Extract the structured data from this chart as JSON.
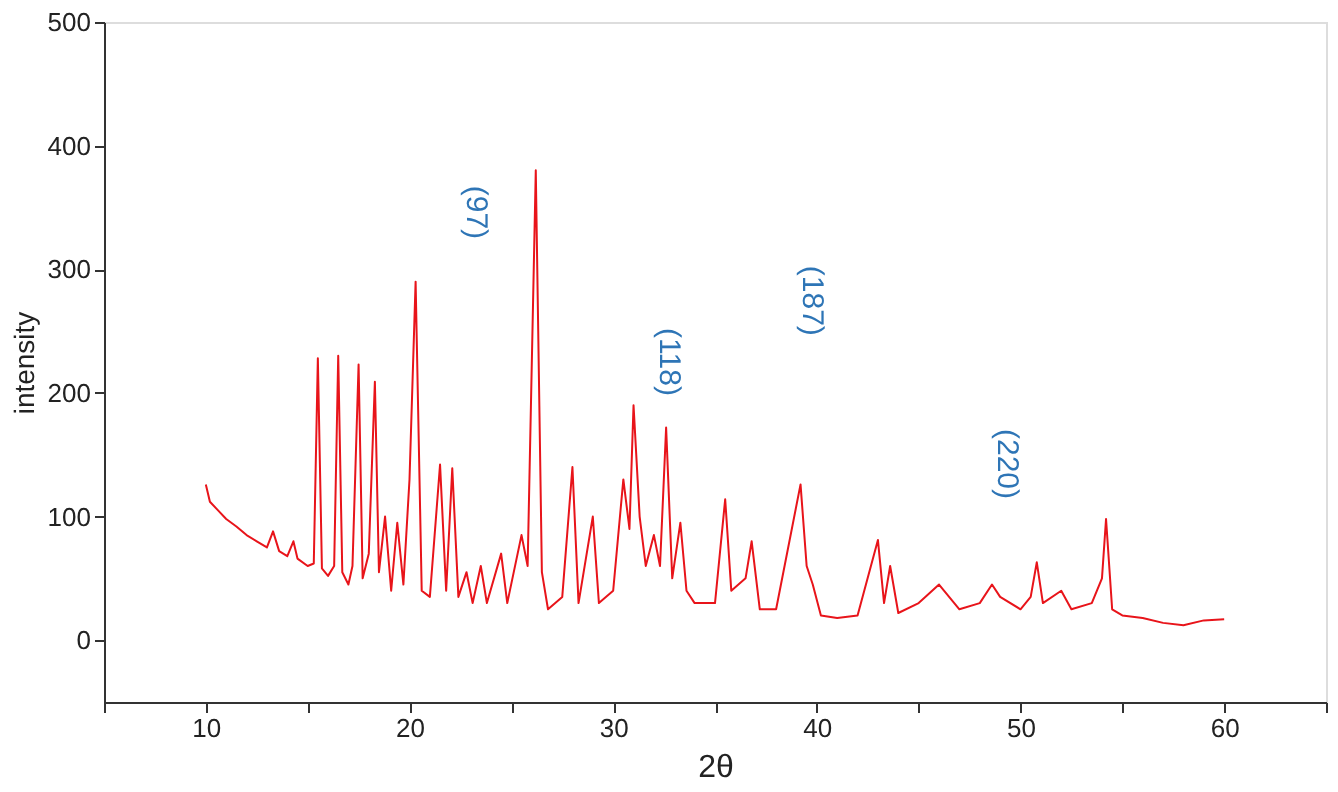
{
  "chart_data": {
    "type": "line",
    "xlabel": "2θ",
    "ylabel": "intensity",
    "xlim": [
      5,
      65
    ],
    "xticks": [
      {
        "value": 5,
        "label": null
      },
      10,
      {
        "value": 15,
        "label": null
      },
      20,
      {
        "value": 25,
        "label": null
      },
      30,
      {
        "value": 35,
        "label": null
      },
      40,
      {
        "value": 45,
        "label": null
      },
      50,
      {
        "value": 55,
        "label": null
      },
      60,
      {
        "value": 65,
        "label": null
      }
    ],
    "ylim": [
      -50,
      500
    ],
    "yticks": [
      0,
      100,
      200,
      300,
      400,
      500
    ],
    "grid": false,
    "marker": "none",
    "line_style": "solid",
    "series": [
      {
        "color": "#e8141a",
        "x": [
          10,
          10.2,
          10.6,
          11,
          11.5,
          12,
          12.5,
          13,
          13.3,
          13.6,
          14,
          14.3,
          14.5,
          15,
          15.3,
          15.5,
          15.7,
          16,
          16.3,
          16.5,
          16.7,
          17,
          17.2,
          17.5,
          17.7,
          18,
          18.3,
          18.5,
          18.8,
          19.1,
          19.4,
          19.7,
          20,
          20.3,
          20.6,
          21,
          21.5,
          21.8,
          22.1,
          22.4,
          22.8,
          23.1,
          23.5,
          23.8,
          24.5,
          24.8,
          25.5,
          25.8,
          26.2,
          26.5,
          26.8,
          27.5,
          28,
          28.3,
          29,
          29.3,
          30,
          30.5,
          30.8,
          31,
          31.3,
          31.6,
          32,
          32.3,
          32.6,
          32.9,
          33.3,
          33.6,
          34,
          35,
          35.5,
          35.8,
          36.5,
          36.8,
          37.2,
          38,
          39.2,
          39.5,
          39.8,
          40.2,
          41,
          42,
          43,
          43.3,
          43.6,
          44,
          45,
          46,
          47,
          48,
          48.6,
          49,
          50,
          50.5,
          50.8,
          51.1,
          52,
          52.5,
          53.5,
          54,
          54.2,
          54.5,
          55,
          56,
          57,
          58,
          59,
          60
        ],
        "values": [
          126,
          112,
          105,
          98,
          92,
          85,
          80,
          75,
          88,
          72,
          68,
          80,
          66,
          60,
          62,
          228,
          58,
          52,
          60,
          230,
          55,
          45,
          60,
          223,
          50,
          70,
          209,
          55,
          100,
          40,
          95,
          45,
          130,
          290,
          40,
          35,
          142,
          40,
          139,
          35,
          55,
          30,
          60,
          30,
          70,
          30,
          85,
          60,
          380,
          55,
          25,
          35,
          140,
          30,
          100,
          30,
          40,
          130,
          90,
          190,
          100,
          60,
          85,
          60,
          172,
          50,
          95,
          40,
          30,
          30,
          114,
          40,
          50,
          80,
          25,
          25,
          126,
          60,
          45,
          20,
          18,
          20,
          81,
          30,
          60,
          22,
          30,
          45,
          25,
          30,
          45,
          35,
          25,
          35,
          63,
          30,
          40,
          25,
          30,
          50,
          98,
          25,
          20,
          18,
          14,
          12,
          16,
          17
        ]
      }
    ],
    "annotations": [
      "(97)",
      "(118)",
      "(187)",
      "(220)"
    ]
  }
}
